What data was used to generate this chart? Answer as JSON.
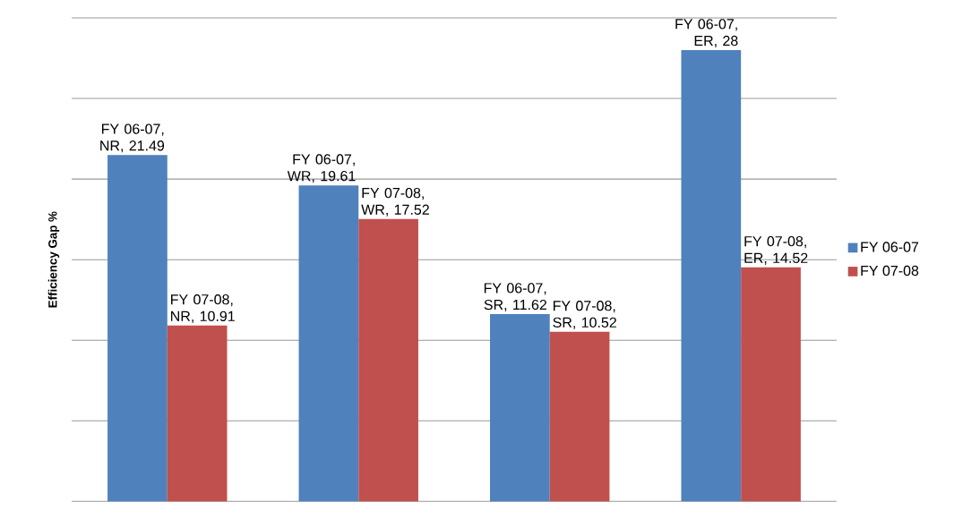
{
  "chart_data": {
    "type": "bar",
    "ylabel": "Efficiency Gap %",
    "categories": [
      null,
      null,
      null,
      null
    ],
    "series": [
      {
        "name": "FY 06-07",
        "color": "#4f81bd",
        "values": [
          21.49,
          19.61,
          11.62,
          28
        ],
        "value_labels": [
          "FY 06-07, NR, 21.49",
          "FY 06-07, WR, 19.61",
          "FY 06-07, SR, 11.62",
          "FY 06-07, ER, 28"
        ]
      },
      {
        "name": "FY 07-08",
        "color": "#c0504d",
        "values": [
          10.91,
          17.52,
          10.52,
          14.52
        ],
        "value_labels": [
          "FY 07-08, NR, 10.91",
          "FY 07-08, WR, 17.52",
          "FY 07-08, SR, 10.52",
          "FY 07-08, ER, 14.52"
        ]
      }
    ],
    "ylim": [
      0,
      30
    ],
    "yticks": [
      {
        "value": 0,
        "label": null
      },
      {
        "value": 5,
        "label": null
      },
      {
        "value": 10,
        "label": null
      },
      {
        "value": 15,
        "label": null
      },
      {
        "value": 20,
        "label": null
      },
      {
        "value": 25,
        "label": null
      },
      {
        "value": 30,
        "label": null
      }
    ],
    "grid": "y",
    "legend": "right"
  }
}
